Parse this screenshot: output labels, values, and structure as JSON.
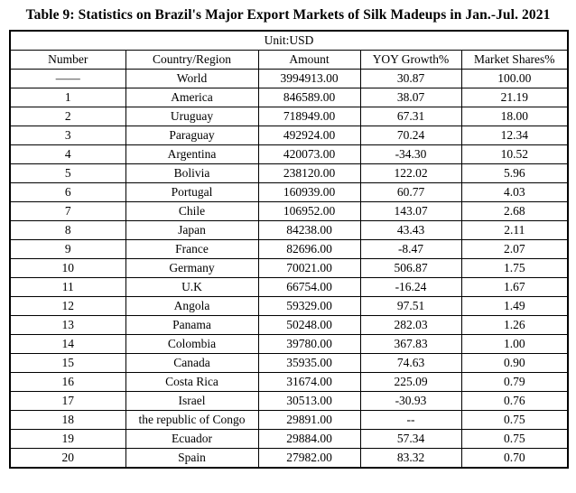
{
  "title": "Table 9: Statistics on Brazil's Major Export Markets of Silk Madeups in Jan.-Jul. 2021",
  "table": {
    "unit_label": "Unit:USD",
    "columns": [
      "Number",
      "Country/Region",
      "Amount",
      "YOY Growth%",
      "Market Shares%"
    ],
    "rows": [
      [
        "——",
        "World",
        "3994913.00",
        "30.87",
        "100.00"
      ],
      [
        "1",
        "America",
        "846589.00",
        "38.07",
        "21.19"
      ],
      [
        "2",
        "Uruguay",
        "718949.00",
        "67.31",
        "18.00"
      ],
      [
        "3",
        "Paraguay",
        "492924.00",
        "70.24",
        "12.34"
      ],
      [
        "4",
        "Argentina",
        "420073.00",
        "-34.30",
        "10.52"
      ],
      [
        "5",
        "Bolivia",
        "238120.00",
        "122.02",
        "5.96"
      ],
      [
        "6",
        "Portugal",
        "160939.00",
        "60.77",
        "4.03"
      ],
      [
        "7",
        "Chile",
        "106952.00",
        "143.07",
        "2.68"
      ],
      [
        "8",
        "Japan",
        "84238.00",
        "43.43",
        "2.11"
      ],
      [
        "9",
        "France",
        "82696.00",
        "-8.47",
        "2.07"
      ],
      [
        "10",
        "Germany",
        "70021.00",
        "506.87",
        "1.75"
      ],
      [
        "11",
        "U.K",
        "66754.00",
        "-16.24",
        "1.67"
      ],
      [
        "12",
        "Angola",
        "59329.00",
        "97.51",
        "1.49"
      ],
      [
        "13",
        "Panama",
        "50248.00",
        "282.03",
        "1.26"
      ],
      [
        "14",
        "Colombia",
        "39780.00",
        "367.83",
        "1.00"
      ],
      [
        "15",
        "Canada",
        "35935.00",
        "74.63",
        "0.90"
      ],
      [
        "16",
        "Costa Rica",
        "31674.00",
        "225.09",
        "0.79"
      ],
      [
        "17",
        "Israel",
        "30513.00",
        "-30.93",
        "0.76"
      ],
      [
        "18",
        "the republic of Congo",
        "29891.00",
        "--",
        "0.75"
      ],
      [
        "19",
        "Ecuador",
        "29884.00",
        "57.34",
        "0.75"
      ],
      [
        "20",
        "Spain",
        "27982.00",
        "83.32",
        "0.70"
      ]
    ]
  },
  "colors": {
    "text": "#000000",
    "border": "#000000",
    "background": "#ffffff"
  }
}
